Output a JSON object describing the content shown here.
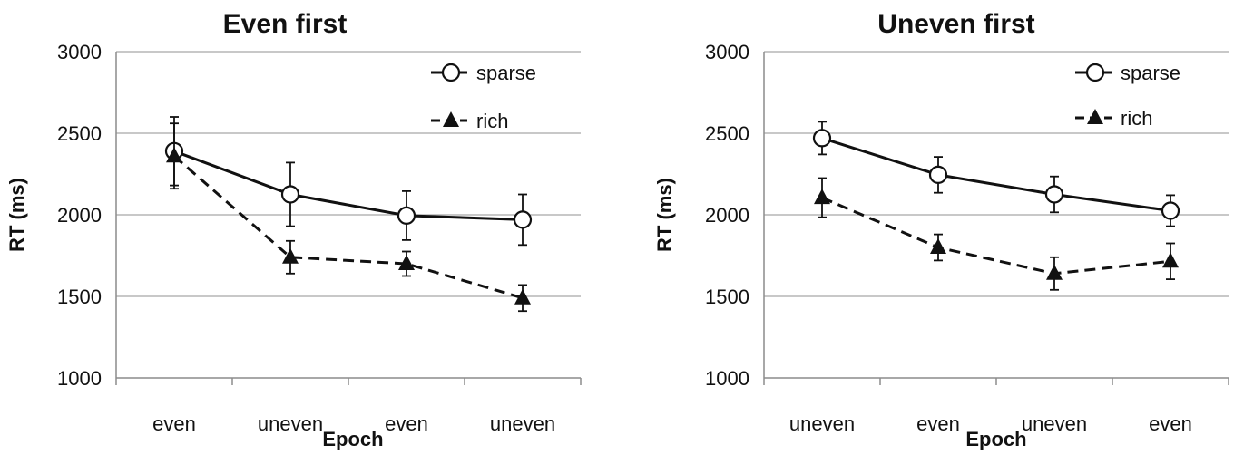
{
  "chart_data": [
    {
      "type": "line",
      "title": "Even first",
      "xlabel": "Epoch",
      "ylabel": "RT (ms)",
      "ylim": [
        1000,
        3000
      ],
      "yticks": [
        1000,
        1500,
        2000,
        2500,
        3000
      ],
      "categories": [
        "even",
        "uneven",
        "even",
        "uneven"
      ],
      "grid": true,
      "legend_position": "top-right",
      "series": [
        {
          "name": "sparse",
          "marker": "circle-open",
          "line": "solid",
          "color": "#111111",
          "values": [
            2390,
            2125,
            1995,
            1970
          ],
          "errors": [
            210,
            195,
            150,
            155
          ]
        },
        {
          "name": "rich",
          "marker": "triangle-filled",
          "line": "dashed",
          "color": "#111111",
          "values": [
            2360,
            1740,
            1700,
            1490
          ],
          "errors": [
            200,
            100,
            75,
            80
          ]
        }
      ]
    },
    {
      "type": "line",
      "title": "Uneven first",
      "xlabel": "Epoch",
      "ylabel": "RT (ms)",
      "ylim": [
        1000,
        3000
      ],
      "yticks": [
        1000,
        1500,
        2000,
        2500,
        3000
      ],
      "categories": [
        "uneven",
        "even",
        "uneven",
        "even"
      ],
      "grid": true,
      "legend_position": "top-right",
      "series": [
        {
          "name": "sparse",
          "marker": "circle-open",
          "line": "solid",
          "color": "#111111",
          "values": [
            2470,
            2245,
            2125,
            2025
          ],
          "errors": [
            100,
            110,
            110,
            95
          ]
        },
        {
          "name": "rich",
          "marker": "triangle-filled",
          "line": "dashed",
          "color": "#111111",
          "values": [
            2105,
            1800,
            1640,
            1715
          ],
          "errors": [
            120,
            80,
            100,
            110
          ]
        }
      ]
    }
  ]
}
